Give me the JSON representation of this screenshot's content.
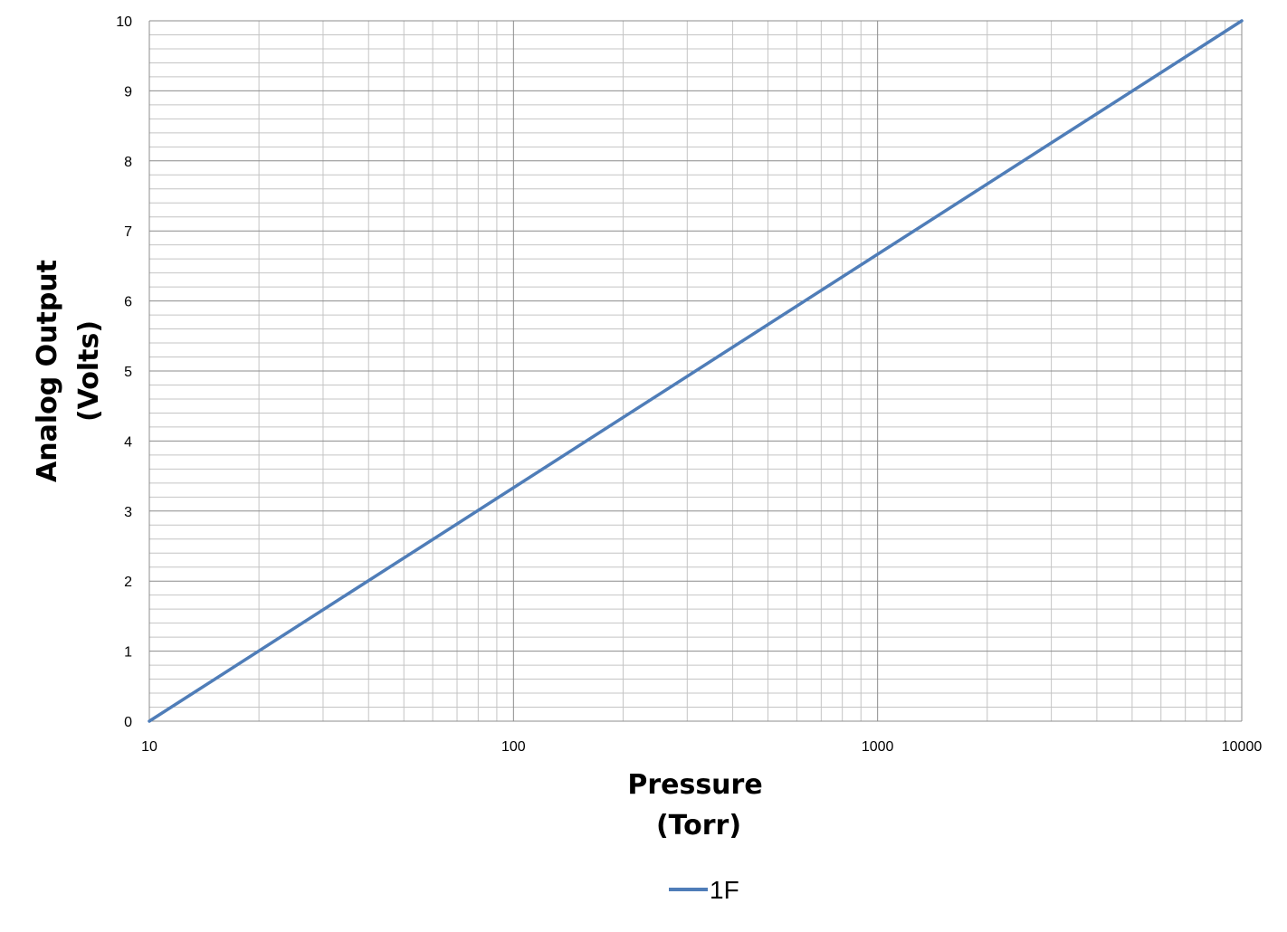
{
  "chart_data": {
    "type": "line",
    "title": "",
    "xlabel": [
      "Pressure",
      "(Torr)"
    ],
    "ylabel": [
      "Analog Output",
      "(Volts)"
    ],
    "x_scale": "log",
    "xlim": [
      10,
      10000
    ],
    "ylim": [
      0,
      10
    ],
    "x_ticks": [
      "10",
      "100",
      "1000",
      "10000"
    ],
    "y_ticks": [
      "0",
      "1",
      "2",
      "3",
      "4",
      "5",
      "6",
      "7",
      "8",
      "9",
      "10"
    ],
    "grid": true,
    "legend_position": "bottom",
    "series": [
      {
        "name": "1F",
        "color": "#4F7DB8",
        "x": [
          10,
          10000
        ],
        "y": [
          0,
          10
        ]
      }
    ]
  }
}
